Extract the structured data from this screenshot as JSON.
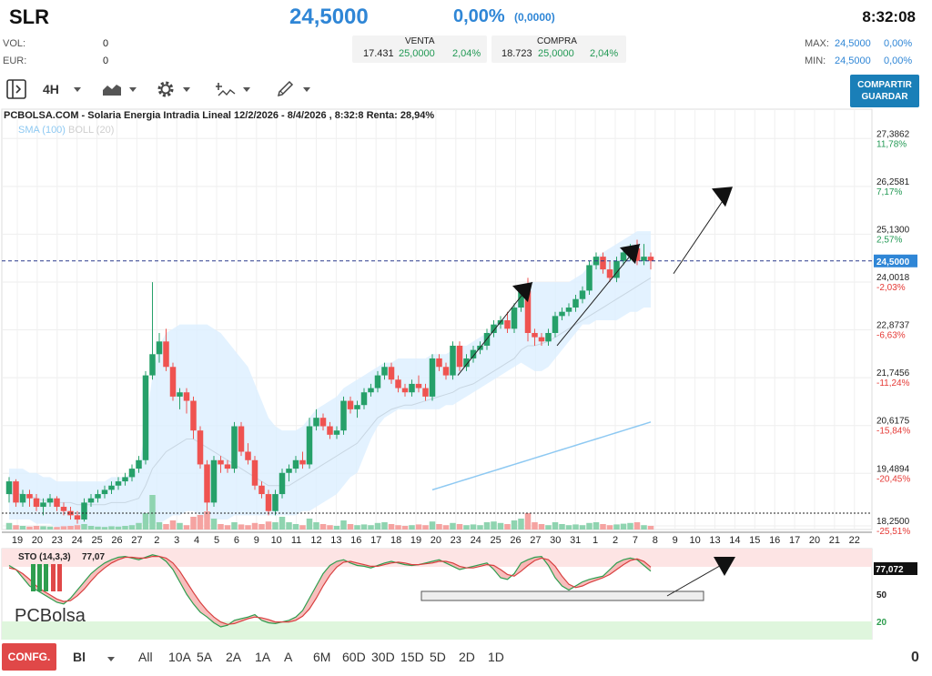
{
  "header": {
    "symbol": "SLR",
    "price": "24,5000",
    "change_pct": "0,00%",
    "change_abs": "(0,0000)",
    "time": "8:32:08",
    "vol_label": "VOL:",
    "vol_value": "0",
    "eur_label": "EUR:",
    "eur_value": "0",
    "venta": {
      "label": "VENTA",
      "qty": "17.431",
      "price": "25,0000",
      "pct": "2,04%"
    },
    "compra": {
      "label": "COMPRA",
      "qty": "18.723",
      "price": "25,0000",
      "pct": "2,04%"
    },
    "max": {
      "label": "MAX:",
      "value": "24,5000",
      "pct": "0,00%"
    },
    "min": {
      "label": "MIN:",
      "value": "24,5000",
      "pct": "0,00%"
    }
  },
  "toolbar": {
    "timeframe": "4H",
    "share_line1": "COMPARTIR",
    "share_line2": "GUARDAR",
    "icons": [
      "panel-toggle-icon",
      "area-chart-icon",
      "gear-icon",
      "indicators-icon",
      "draw-pencil-icon"
    ]
  },
  "chart_title": "PCBOLSA.COM - Solaria Energia Intradia Lineal 12/2/2026 - 8/4/2026 , 8:32:8 Renta: 28,94%",
  "legend": {
    "sma": "SMA (100)",
    "boll": "BOLL (20)"
  },
  "logo_text": "PCBolsa",
  "colors": {
    "up": "#26a069",
    "down": "#ef5350",
    "boll_fill": "#dcefff",
    "sma": "#8ec9f2",
    "axis_pct_up": "#229954",
    "axis_pct_down": "#e53935",
    "price_tag": "#2f86d6"
  },
  "bottom": {
    "confg": "CONFG.",
    "bl": "Bl",
    "timeframes": [
      "All",
      "10A",
      "5A",
      "2A",
      "1A",
      "A",
      "6M",
      "60D",
      "30D",
      "15D",
      "5D",
      "2D",
      "1D"
    ],
    "counter": "0"
  },
  "chart_data": {
    "type": "candlestick",
    "y_axis_ticks": [
      {
        "price": "27,3862",
        "pct": "11,78%",
        "v": 27.3862
      },
      {
        "price": "26,2581",
        "pct": "7,17%",
        "v": 26.2581
      },
      {
        "price": "25,1300",
        "pct": "2,57%",
        "v": 25.13
      },
      {
        "price": "24,0018",
        "pct": "-2,03%",
        "v": 24.0018
      },
      {
        "price": "22,8737",
        "pct": "-6,63%",
        "v": 22.8737
      },
      {
        "price": "21,7456",
        "pct": "-11,24%",
        "v": 21.7456
      },
      {
        "price": "20,6175",
        "pct": "-15,84%",
        "v": 20.6175
      },
      {
        "price": "19,4894",
        "pct": "-20,45%",
        "v": 19.4894
      },
      {
        "price": "18,2500",
        "pct": "-25,51%",
        "v": 18.25
      }
    ],
    "last_price": "24,5000",
    "last_price_value": 24.5,
    "x_labels": [
      "19",
      "20",
      "23",
      "24",
      "25",
      "26",
      "27",
      "2",
      "3",
      "4",
      "5",
      "6",
      "9",
      "10",
      "11",
      "12",
      "13",
      "16",
      "17",
      "18",
      "19",
      "20",
      "23",
      "24",
      "25",
      "26",
      "27",
      "30",
      "31",
      "1",
      "2",
      "7",
      "8",
      "9",
      "10",
      "13",
      "14",
      "15",
      "16",
      "17",
      "20",
      "21",
      "22"
    ],
    "ylim": [
      18.1,
      27.8
    ],
    "candles": [
      [
        19.0,
        19.4,
        18.8,
        19.3
      ],
      [
        19.3,
        19.35,
        18.7,
        18.8
      ],
      [
        18.8,
        19.1,
        18.7,
        19.0
      ],
      [
        19.0,
        19.1,
        18.7,
        18.9
      ],
      [
        18.9,
        19.0,
        18.6,
        18.7
      ],
      [
        18.7,
        18.9,
        18.5,
        18.8
      ],
      [
        18.8,
        19.0,
        18.7,
        18.9
      ],
      [
        18.9,
        18.95,
        18.6,
        18.7
      ],
      [
        18.7,
        18.8,
        18.5,
        18.6
      ],
      [
        18.6,
        18.7,
        18.4,
        18.5
      ],
      [
        18.5,
        18.6,
        18.3,
        18.4
      ],
      [
        18.4,
        18.9,
        18.35,
        18.8
      ],
      [
        18.8,
        19.0,
        18.7,
        18.9
      ],
      [
        18.9,
        19.1,
        18.8,
        19.0
      ],
      [
        19.0,
        19.2,
        18.9,
        19.1
      ],
      [
        19.1,
        19.3,
        19.0,
        19.2
      ],
      [
        19.2,
        19.4,
        19.1,
        19.3
      ],
      [
        19.3,
        19.5,
        19.2,
        19.4
      ],
      [
        19.4,
        19.7,
        19.3,
        19.6
      ],
      [
        19.6,
        19.9,
        19.5,
        19.8
      ],
      [
        19.8,
        21.9,
        19.7,
        21.8
      ],
      [
        21.8,
        24.0,
        21.7,
        22.3
      ],
      [
        22.3,
        22.8,
        22.1,
        22.6
      ],
      [
        22.6,
        22.9,
        21.9,
        22.0
      ],
      [
        22.0,
        22.1,
        21.2,
        21.3
      ],
      [
        21.3,
        21.5,
        21.0,
        21.4
      ],
      [
        21.4,
        21.5,
        20.9,
        21.2
      ],
      [
        21.2,
        21.3,
        20.3,
        20.5
      ],
      [
        20.5,
        20.6,
        19.6,
        19.7
      ],
      [
        19.7,
        19.8,
        18.6,
        18.8
      ],
      [
        18.8,
        19.9,
        18.7,
        19.8
      ],
      [
        19.8,
        19.9,
        19.5,
        19.7
      ],
      [
        19.7,
        19.8,
        19.5,
        19.6
      ],
      [
        19.6,
        20.7,
        19.5,
        20.6
      ],
      [
        20.6,
        20.7,
        19.9,
        20.0
      ],
      [
        20.0,
        20.2,
        19.7,
        19.8
      ],
      [
        19.8,
        19.9,
        19.1,
        19.2
      ],
      [
        19.2,
        19.3,
        18.9,
        19.0
      ],
      [
        19.0,
        19.1,
        18.5,
        18.6
      ],
      [
        18.6,
        19.1,
        18.5,
        19.0
      ],
      [
        19.0,
        19.6,
        18.9,
        19.5
      ],
      [
        19.5,
        19.7,
        19.3,
        19.6
      ],
      [
        19.6,
        19.9,
        19.5,
        19.8
      ],
      [
        19.8,
        20.0,
        19.6,
        19.7
      ],
      [
        19.7,
        20.8,
        19.6,
        20.6
      ],
      [
        20.6,
        21.0,
        20.5,
        20.8
      ],
      [
        20.8,
        20.9,
        20.5,
        20.6
      ],
      [
        20.6,
        20.7,
        20.3,
        20.4
      ],
      [
        20.4,
        20.6,
        20.3,
        20.5
      ],
      [
        20.5,
        21.3,
        20.4,
        21.2
      ],
      [
        21.2,
        21.3,
        20.9,
        21.0
      ],
      [
        21.0,
        21.2,
        20.8,
        21.1
      ],
      [
        21.1,
        21.5,
        21.0,
        21.4
      ],
      [
        21.4,
        21.6,
        21.3,
        21.5
      ],
      [
        21.5,
        21.9,
        21.4,
        21.8
      ],
      [
        21.8,
        22.1,
        21.7,
        22.0
      ],
      [
        22.0,
        22.1,
        21.6,
        21.7
      ],
      [
        21.7,
        21.8,
        21.4,
        21.5
      ],
      [
        21.5,
        21.6,
        21.3,
        21.4
      ],
      [
        21.4,
        21.7,
        21.3,
        21.6
      ],
      [
        21.6,
        21.8,
        21.4,
        21.5
      ],
      [
        21.5,
        21.6,
        21.2,
        21.3
      ],
      [
        21.3,
        22.3,
        21.2,
        22.2
      ],
      [
        22.2,
        22.3,
        21.9,
        22.0
      ],
      [
        22.0,
        22.1,
        21.7,
        21.8
      ],
      [
        21.8,
        22.6,
        21.7,
        22.5
      ],
      [
        22.5,
        22.6,
        21.9,
        22.0
      ],
      [
        22.0,
        22.3,
        21.9,
        22.2
      ],
      [
        22.2,
        22.5,
        22.1,
        22.4
      ],
      [
        22.4,
        22.6,
        22.3,
        22.5
      ],
      [
        22.5,
        22.9,
        22.4,
        22.8
      ],
      [
        22.8,
        23.1,
        22.7,
        23.0
      ],
      [
        23.0,
        23.2,
        22.9,
        23.1
      ],
      [
        23.1,
        23.3,
        22.8,
        22.9
      ],
      [
        22.9,
        23.5,
        22.8,
        23.4
      ],
      [
        23.4,
        23.9,
        23.3,
        23.8
      ],
      [
        23.8,
        24.1,
        22.6,
        22.8
      ],
      [
        22.8,
        22.9,
        22.5,
        22.7
      ],
      [
        22.7,
        22.8,
        22.5,
        22.6
      ],
      [
        22.6,
        22.9,
        22.5,
        22.8
      ],
      [
        22.8,
        23.3,
        22.7,
        23.2
      ],
      [
        23.2,
        23.4,
        23.1,
        23.3
      ],
      [
        23.3,
        23.5,
        23.2,
        23.4
      ],
      [
        23.4,
        23.7,
        23.3,
        23.6
      ],
      [
        23.6,
        23.9,
        23.5,
        23.8
      ],
      [
        23.8,
        24.5,
        23.7,
        24.4
      ],
      [
        24.4,
        24.7,
        24.3,
        24.6
      ],
      [
        24.6,
        24.7,
        24.2,
        24.3
      ],
      [
        24.3,
        24.5,
        24.0,
        24.1
      ],
      [
        24.1,
        24.6,
        24.0,
        24.5
      ],
      [
        24.5,
        24.8,
        24.4,
        24.7
      ],
      [
        24.7,
        24.9,
        24.5,
        24.8
      ],
      [
        24.8,
        25.0,
        24.4,
        24.5
      ],
      [
        24.5,
        24.9,
        24.4,
        24.6
      ],
      [
        24.6,
        24.7,
        24.3,
        24.5
      ]
    ],
    "volume": [
      0.18,
      0.12,
      0.1,
      0.08,
      0.1,
      0.09,
      0.08,
      0.07,
      0.09,
      0.1,
      0.12,
      0.15,
      0.1,
      0.08,
      0.07,
      0.09,
      0.08,
      0.1,
      0.12,
      0.18,
      0.45,
      0.95,
      0.2,
      0.15,
      0.25,
      0.18,
      0.12,
      0.35,
      0.4,
      0.5,
      0.3,
      0.15,
      0.12,
      0.2,
      0.14,
      0.12,
      0.18,
      0.15,
      0.22,
      0.2,
      0.35,
      0.2,
      0.15,
      0.12,
      0.3,
      0.2,
      0.15,
      0.12,
      0.1,
      0.25,
      0.15,
      0.12,
      0.14,
      0.12,
      0.18,
      0.2,
      0.15,
      0.12,
      0.1,
      0.12,
      0.14,
      0.12,
      0.22,
      0.15,
      0.12,
      0.18,
      0.15,
      0.12,
      0.14,
      0.12,
      0.2,
      0.22,
      0.18,
      0.15,
      0.25,
      0.3,
      0.45,
      0.2,
      0.15,
      0.12,
      0.2,
      0.15,
      0.12,
      0.14,
      0.12,
      0.18,
      0.2,
      0.15,
      0.12,
      0.14,
      0.16,
      0.18,
      0.2,
      0.12,
      0.1
    ],
    "bollinger": {
      "upper": [
        19.6,
        19.6,
        19.6,
        19.5,
        19.5,
        19.4,
        19.4,
        19.3,
        19.3,
        19.3,
        19.3,
        19.3,
        19.3,
        19.3,
        19.3,
        19.4,
        19.4,
        19.4,
        19.5,
        19.6,
        20.6,
        21.8,
        22.5,
        22.8,
        22.9,
        23.0,
        23.0,
        23.0,
        23.0,
        23.0,
        22.9,
        22.8,
        22.6,
        22.4,
        22.2,
        22.0,
        21.6,
        21.2,
        20.8,
        20.6,
        20.5,
        20.5,
        20.5,
        20.6,
        20.8,
        21.0,
        21.1,
        21.2,
        21.3,
        21.5,
        21.6,
        21.7,
        21.8,
        21.9,
        22.0,
        22.1,
        22.1,
        22.2,
        22.2,
        22.2,
        22.2,
        22.2,
        22.3,
        22.3,
        22.3,
        22.4,
        22.5,
        22.5,
        22.6,
        22.7,
        22.8,
        23.0,
        23.1,
        23.2,
        23.4,
        23.7,
        24.0,
        24.0,
        24.0,
        24.0,
        24.0,
        24.0,
        24.0,
        24.1,
        24.2,
        24.4,
        24.6,
        24.7,
        24.8,
        24.9,
        25.0,
        25.1,
        25.2,
        25.2,
        25.2
      ],
      "lower": [
        18.4,
        18.4,
        18.4,
        18.4,
        18.3,
        18.3,
        18.3,
        18.2,
        18.2,
        18.2,
        18.2,
        18.2,
        18.2,
        18.2,
        18.2,
        18.2,
        18.2,
        18.2,
        18.2,
        18.3,
        18.3,
        18.3,
        18.3,
        18.4,
        18.5,
        18.5,
        18.6,
        18.6,
        18.5,
        18.4,
        18.4,
        18.4,
        18.4,
        18.5,
        18.5,
        18.5,
        18.5,
        18.5,
        18.5,
        18.5,
        18.5,
        18.5,
        18.5,
        18.6,
        18.6,
        18.7,
        18.8,
        18.9,
        19.0,
        19.2,
        19.4,
        19.5,
        19.9,
        20.3,
        20.6,
        20.8,
        20.9,
        21.0,
        21.0,
        21.0,
        21.0,
        21.0,
        21.0,
        21.0,
        21.1,
        21.1,
        21.2,
        21.3,
        21.4,
        21.5,
        21.6,
        21.7,
        21.8,
        21.9,
        22.0,
        22.1,
        22.0,
        21.9,
        21.9,
        22.0,
        22.2,
        22.4,
        22.6,
        22.8,
        23.0,
        23.0,
        23.1,
        23.1,
        23.1,
        23.1,
        23.2,
        23.3,
        23.3,
        23.4,
        23.4
      ],
      "mid": [
        19.0,
        19.0,
        19.0,
        18.95,
        18.9,
        18.85,
        18.85,
        18.8,
        18.8,
        18.8,
        18.75,
        18.75,
        18.75,
        18.75,
        18.75,
        18.8,
        18.8,
        18.8,
        18.85,
        18.9,
        19.2,
        19.6,
        19.8,
        20.0,
        20.1,
        20.2,
        20.3,
        20.3,
        20.2,
        20.1,
        20.0,
        19.9,
        19.8,
        19.7,
        19.6,
        19.5,
        19.4,
        19.3,
        19.2,
        19.2,
        19.2,
        19.2,
        19.3,
        19.4,
        19.5,
        19.6,
        19.7,
        19.8,
        19.9,
        20.0,
        20.1,
        20.2,
        20.4,
        20.6,
        20.8,
        20.9,
        21.0,
        21.05,
        21.1,
        21.1,
        21.15,
        21.2,
        21.25,
        21.3,
        21.35,
        21.4,
        21.5,
        21.55,
        21.6,
        21.7,
        21.8,
        21.9,
        22.0,
        22.1,
        22.2,
        22.4,
        22.5,
        22.5,
        22.55,
        22.6,
        22.7,
        22.8,
        22.9,
        23.0,
        23.1,
        23.2,
        23.3,
        23.4,
        23.5,
        23.6,
        23.7,
        23.8,
        23.9,
        24.0,
        24.1
      ]
    },
    "sma100": {
      "start_index": 62,
      "values": [
        19.1,
        19.15,
        19.2,
        19.25,
        19.3,
        19.35,
        19.4,
        19.45,
        19.5,
        19.55,
        19.6,
        19.65,
        19.7,
        19.75,
        19.8,
        19.85,
        19.9,
        19.95,
        20.0,
        20.05,
        20.1,
        20.15,
        20.2,
        20.25,
        20.3,
        20.35,
        20.4,
        20.45,
        20.5,
        20.55,
        20.6,
        20.65,
        20.7
      ]
    },
    "oscillator": {
      "name": "STO (14,3,3)",
      "value": "77,07",
      "current_tag": "77,072",
      "levels": [
        "50",
        "20"
      ],
      "k": [
        85,
        80,
        70,
        60,
        55,
        50,
        45,
        40,
        38,
        45,
        55,
        65,
        75,
        82,
        88,
        92,
        95,
        96,
        94,
        92,
        95,
        98,
        96,
        90,
        80,
        65,
        50,
        38,
        28,
        22,
        15,
        10,
        12,
        18,
        20,
        22,
        25,
        18,
        15,
        14,
        16,
        18,
        22,
        30,
        45,
        60,
        75,
        85,
        90,
        92,
        88,
        85,
        84,
        82,
        85,
        88,
        90,
        88,
        86,
        85,
        86,
        88,
        90,
        92,
        88,
        84,
        80,
        82,
        84,
        86,
        88,
        80,
        70,
        68,
        75,
        88,
        92,
        95,
        96,
        85,
        70,
        60,
        55,
        60,
        65,
        68,
        70,
        72,
        80,
        88,
        92,
        94,
        92,
        85,
        78
      ],
      "d": [
        82,
        80,
        75,
        68,
        60,
        54,
        49,
        44,
        41,
        42,
        48,
        56,
        66,
        75,
        82,
        88,
        92,
        95,
        95,
        94,
        94,
        96,
        96,
        94,
        88,
        78,
        65,
        52,
        40,
        30,
        22,
        16,
        13,
        14,
        17,
        20,
        22,
        21,
        19,
        16,
        16,
        16,
        18,
        23,
        32,
        45,
        60,
        73,
        83,
        89,
        90,
        88,
        86,
        84,
        84,
        86,
        88,
        89,
        88,
        86,
        86,
        87,
        88,
        90,
        90,
        88,
        84,
        82,
        82,
        84,
        86,
        85,
        80,
        74,
        72,
        78,
        85,
        91,
        94,
        92,
        84,
        72,
        62,
        58,
        60,
        64,
        67,
        70,
        74,
        80,
        86,
        91,
        93,
        90,
        83
      ]
    }
  }
}
